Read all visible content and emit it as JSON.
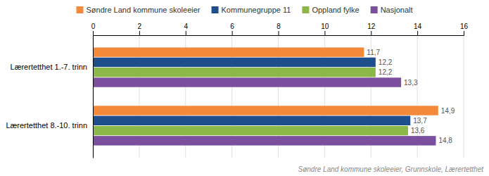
{
  "chart_data": {
    "type": "bar",
    "orientation": "horizontal",
    "categories": [
      "Lærertetthet 1.-7. trinn",
      "Lærertetthet 8.-10. trinn"
    ],
    "series": [
      {
        "name": "Søndre Land kommune skoleeier",
        "color": "#F4893A",
        "values": [
          11.7,
          14.9
        ],
        "value_labels": [
          "11,7",
          "14,9"
        ]
      },
      {
        "name": "Kommunegruppe 11",
        "color": "#1F4E8C",
        "values": [
          12.2,
          13.7
        ],
        "value_labels": [
          "12,2",
          "13,7"
        ]
      },
      {
        "name": "Oppland fylke",
        "color": "#8CB749",
        "values": [
          12.2,
          13.6
        ],
        "value_labels": [
          "12,2",
          "13,6"
        ]
      },
      {
        "name": "Nasjonalt",
        "color": "#7B4F9E",
        "values": [
          13.3,
          14.8
        ],
        "value_labels": [
          "13,3",
          "14,8"
        ]
      }
    ],
    "xlim": [
      0,
      16
    ],
    "xticks": [
      0,
      2,
      4,
      6,
      8,
      10,
      12,
      14,
      16
    ],
    "grid": true,
    "legend": "top",
    "data_labels": true,
    "annotations": [
      "Søndre Land kommune skoleeier, Grunnskole, Lærertetthet"
    ]
  }
}
